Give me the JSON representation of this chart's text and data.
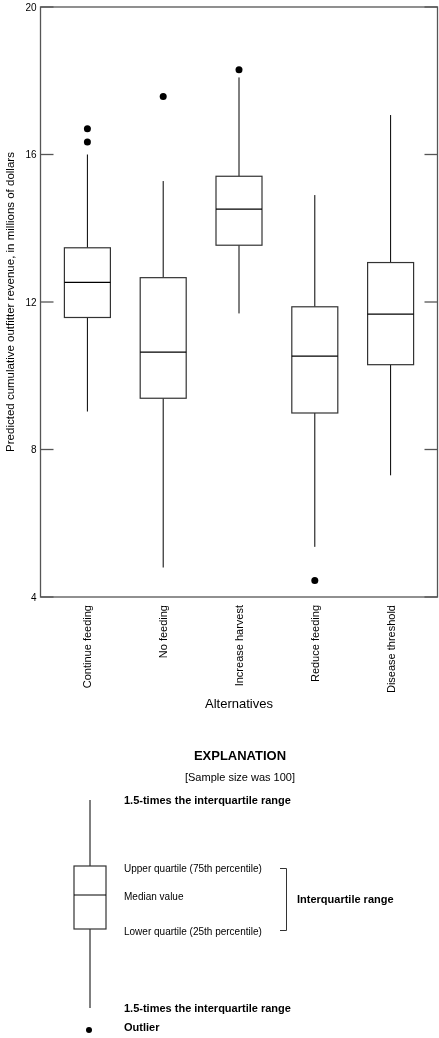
{
  "chart_data": {
    "type": "box",
    "xlabel": "Alternatives",
    "ylabel": "Predicted cumulative outfitter revenue, in millions of dollars",
    "categories": [
      "Continue feeding",
      "No feeding",
      "Increase harvest",
      "Reduce feeding",
      "Disease threshold"
    ],
    "boxes": [
      {
        "low": 9.03,
        "q1": 11.58,
        "median": 12.53,
        "q3": 13.47,
        "high": 16.0,
        "outliers": [
          16.7,
          16.34
        ]
      },
      {
        "low": 4.8,
        "q1": 9.39,
        "median": 10.64,
        "q3": 12.66,
        "high": 15.28,
        "outliers": [
          17.57
        ]
      },
      {
        "low": 11.69,
        "q1": 13.54,
        "median": 14.52,
        "q3": 15.41,
        "high": 18.09,
        "outliers": [
          18.3
        ]
      },
      {
        "low": 5.36,
        "q1": 8.99,
        "median": 10.53,
        "q3": 11.87,
        "high": 14.9,
        "outliers": [
          4.45
        ]
      },
      {
        "low": 7.3,
        "q1": 10.3,
        "median": 11.67,
        "q3": 13.07,
        "high": 17.07
      }
    ],
    "ylim": [
      4,
      20
    ],
    "yticks": [
      4,
      8,
      12,
      16,
      20
    ],
    "grid": false,
    "annotations": [
      "EXPLANATION",
      "[Sample size was 100]",
      "1.5-times the interquartile range",
      "Upper quartile (75th percentile)",
      "Median value",
      "Lower quartile (25th percentile)",
      "Interquartile range",
      "1.5-times the interquartile range",
      "Outlier"
    ]
  }
}
